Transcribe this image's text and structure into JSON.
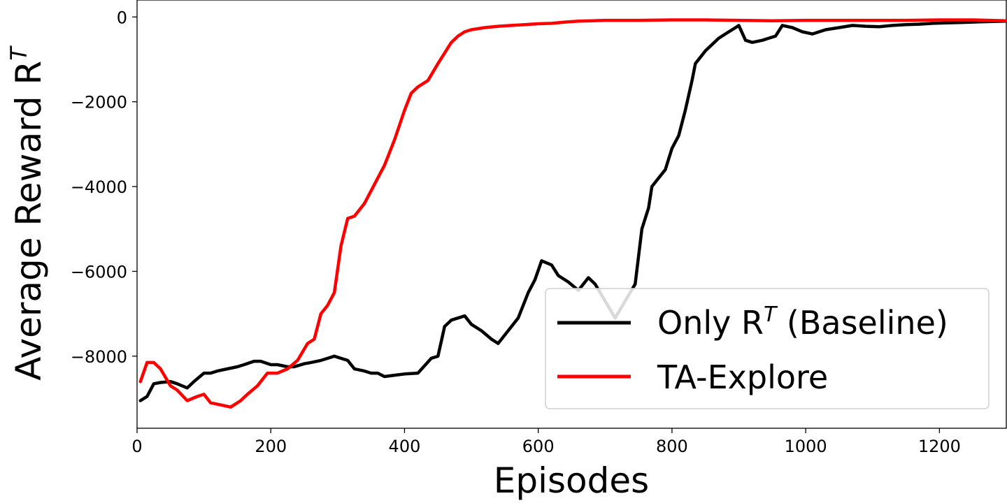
{
  "chart_data": {
    "type": "line",
    "xlabel": "Episodes",
    "ylabel": "Average Reward R",
    "ylabel_superscript": "T",
    "xlim": [
      0,
      1300
    ],
    "ylim": [
      -9700,
      400
    ],
    "xticks": [
      0,
      200,
      400,
      600,
      800,
      1000,
      1200
    ],
    "yticks": [
      0,
      -2000,
      -4000,
      -6000,
      -8000
    ],
    "xtick_labels": [
      "0",
      "200",
      "400",
      "600",
      "800",
      "1000",
      "1200"
    ],
    "ytick_labels": [
      "0",
      "−2000",
      "−4000",
      "−6000",
      "−8000"
    ],
    "grid": false,
    "legend_position": "lower-right",
    "series": [
      {
        "name": "Only R",
        "name_superscript": "T",
        "name_suffix": " (Baseline)",
        "color": "#000000",
        "x": [
          5,
          15,
          25,
          35,
          50,
          60,
          75,
          85,
          100,
          110,
          120,
          135,
          150,
          160,
          175,
          185,
          200,
          210,
          225,
          235,
          250,
          260,
          275,
          285,
          295,
          305,
          315,
          325,
          340,
          350,
          360,
          370,
          385,
          400,
          420,
          440,
          450,
          460,
          470,
          480,
          490,
          500,
          515,
          530,
          540,
          555,
          570,
          585,
          595,
          605,
          620,
          630,
          645,
          660,
          675,
          685,
          700,
          715,
          730,
          745,
          755,
          765,
          770,
          780,
          790,
          800,
          810,
          820,
          830,
          835,
          850,
          870,
          885,
          895,
          900,
          910,
          920,
          935,
          945,
          955,
          965,
          980,
          995,
          1010,
          1030,
          1050,
          1070,
          1090,
          1110,
          1130,
          1150,
          1170,
          1190,
          1210,
          1230,
          1250,
          1270,
          1300
        ],
        "y": [
          -9050,
          -8950,
          -8650,
          -8620,
          -8600,
          -8650,
          -8750,
          -8600,
          -8400,
          -8400,
          -8350,
          -8300,
          -8250,
          -8200,
          -8120,
          -8120,
          -8200,
          -8200,
          -8250,
          -8250,
          -8180,
          -8150,
          -8100,
          -8050,
          -8000,
          -8050,
          -8100,
          -8300,
          -8350,
          -8400,
          -8400,
          -8480,
          -8450,
          -8420,
          -8400,
          -8050,
          -8000,
          -7300,
          -7150,
          -7100,
          -7050,
          -7250,
          -7400,
          -7600,
          -7700,
          -7400,
          -7100,
          -6500,
          -6200,
          -5750,
          -5850,
          -6100,
          -6250,
          -6450,
          -6150,
          -6300,
          -6700,
          -7100,
          -6700,
          -6300,
          -5000,
          -4500,
          -4000,
          -3800,
          -3600,
          -3100,
          -2800,
          -2200,
          -1500,
          -1100,
          -800,
          -500,
          -350,
          -250,
          -200,
          -550,
          -600,
          -550,
          -500,
          -450,
          -200,
          -250,
          -350,
          -400,
          -300,
          -250,
          -200,
          -220,
          -230,
          -200,
          -180,
          -170,
          -150,
          -140,
          -130,
          -120,
          -110,
          -100
        ]
      },
      {
        "name": "TA-Explore",
        "color": "#ff0000",
        "x": [
          5,
          15,
          25,
          35,
          50,
          60,
          75,
          90,
          100,
          110,
          125,
          140,
          155,
          165,
          180,
          195,
          210,
          225,
          240,
          255,
          265,
          275,
          285,
          295,
          305,
          315,
          325,
          340,
          350,
          360,
          370,
          385,
          400,
          410,
          420,
          435,
          450,
          460,
          470,
          480,
          490,
          500,
          520,
          540,
          560,
          580,
          600,
          620,
          640,
          660,
          680,
          700,
          720,
          750,
          800,
          850,
          900,
          950,
          1000,
          1050,
          1100,
          1150,
          1200,
          1250,
          1300
        ],
        "y": [
          -8600,
          -8150,
          -8150,
          -8300,
          -8700,
          -8800,
          -9050,
          -8950,
          -8900,
          -9100,
          -9150,
          -9200,
          -9050,
          -8900,
          -8700,
          -8400,
          -8400,
          -8300,
          -8100,
          -7700,
          -7600,
          -7000,
          -6800,
          -6500,
          -5400,
          -4750,
          -4700,
          -4400,
          -4100,
          -3800,
          -3500,
          -2900,
          -2200,
          -1800,
          -1650,
          -1500,
          -1100,
          -850,
          -600,
          -450,
          -350,
          -300,
          -250,
          -220,
          -200,
          -180,
          -160,
          -150,
          -120,
          -100,
          -90,
          -80,
          -80,
          -80,
          -70,
          -70,
          -80,
          -90,
          -80,
          -80,
          -80,
          -80,
          -70,
          -70,
          -90
        ]
      }
    ]
  }
}
